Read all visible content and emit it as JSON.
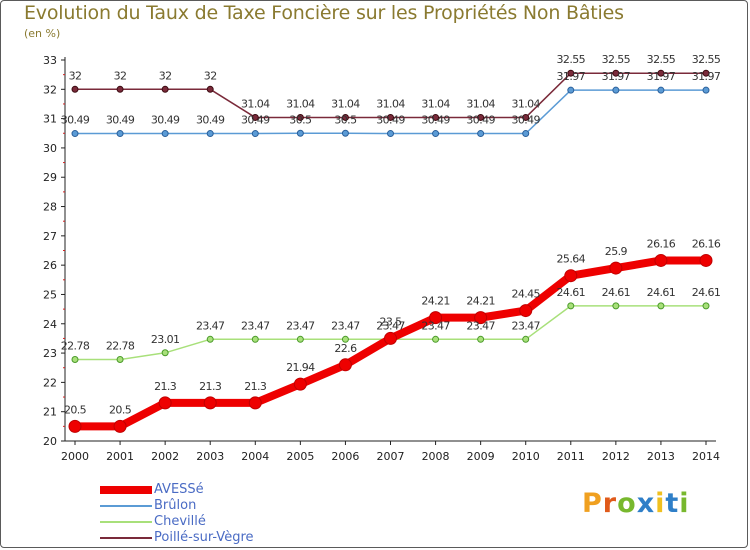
{
  "title": "Evolution du Taux de Taxe Foncière sur les Propriétés Non Bâties",
  "unit": "(en %)",
  "logo": [
    "P",
    "r",
    "o",
    "x",
    "i",
    "t",
    "i"
  ],
  "logo_colors": [
    "#f0a020",
    "#e05a1a",
    "#78b82e",
    "#2f7fc8",
    "#f0c020",
    "#2f7fc8",
    "#78b82e"
  ],
  "chart_data": {
    "type": "line",
    "title": "Evolution du Taux de Taxe Foncière sur les Propriétés Non Bâties",
    "ylabel": "(en %)",
    "xlabel": "",
    "ylim": [
      20,
      33
    ],
    "x": [
      "2000",
      "2001",
      "2002",
      "2003",
      "2004",
      "2005",
      "2006",
      "2007",
      "2008",
      "2009",
      "2010",
      "2011",
      "2012",
      "2013",
      "2014"
    ],
    "yticks": [
      "20",
      "21",
      "22",
      "23",
      "24",
      "25",
      "26",
      "27",
      "28",
      "29",
      "30",
      "31",
      "32",
      "33"
    ],
    "series": [
      {
        "name": "AVESSé",
        "color": "#ee0000",
        "values": [
          20.5,
          20.5,
          21.3,
          21.3,
          21.3,
          21.94,
          22.6,
          23.5,
          24.21,
          24.21,
          24.45,
          25.64,
          25.9,
          26.16,
          26.16
        ],
        "labels": [
          "20.5",
          "20.5",
          "21.3",
          "21.3",
          "21.3",
          "21.94",
          "22.6",
          "23.5",
          "24.21",
          "24.21",
          "24.45",
          "25.64",
          "25.9",
          "26.16",
          "26.16"
        ]
      },
      {
        "name": "Brûlon",
        "color": "#5b9bd5",
        "values": [
          30.49,
          30.49,
          30.49,
          30.49,
          30.49,
          30.5,
          30.5,
          30.49,
          30.49,
          30.49,
          30.49,
          31.97,
          31.97,
          31.97,
          31.97
        ],
        "labels": [
          "30.49",
          "30.49",
          "30.49",
          "30.49",
          "30.49",
          "30.5",
          "30.5",
          "30.49",
          "30.49",
          "30.49",
          "30.49",
          "31.97",
          "31.97",
          "31.97",
          "31.97"
        ]
      },
      {
        "name": "Chevillé",
        "color": "#a8e07a",
        "values": [
          22.78,
          22.78,
          23.01,
          23.47,
          23.47,
          23.47,
          23.47,
          23.47,
          23.47,
          23.47,
          23.47,
          24.61,
          24.61,
          24.61,
          24.61
        ],
        "labels": [
          "22.78",
          "22.78",
          "23.01",
          "23.47",
          "23.47",
          "23.47",
          "23.47",
          "23.47",
          "23.47",
          "23.47",
          "23.47",
          "24.61",
          "24.61",
          "24.61",
          "24.61"
        ]
      },
      {
        "name": "Poillé-sur-Vègre",
        "color": "#7a2a3a",
        "values": [
          32,
          32,
          32,
          32,
          31.04,
          31.04,
          31.04,
          31.04,
          31.04,
          31.04,
          31.04,
          32.55,
          32.55,
          32.55,
          32.55
        ],
        "labels": [
          "32",
          "32",
          "32",
          "32",
          "31.04",
          "31.04",
          "31.04",
          "31.04",
          "31.04",
          "31.04",
          "31.04",
          "32.55",
          "32.55",
          "32.55",
          "32.55"
        ]
      }
    ],
    "legend_position": "bottom-left",
    "grid": false
  }
}
